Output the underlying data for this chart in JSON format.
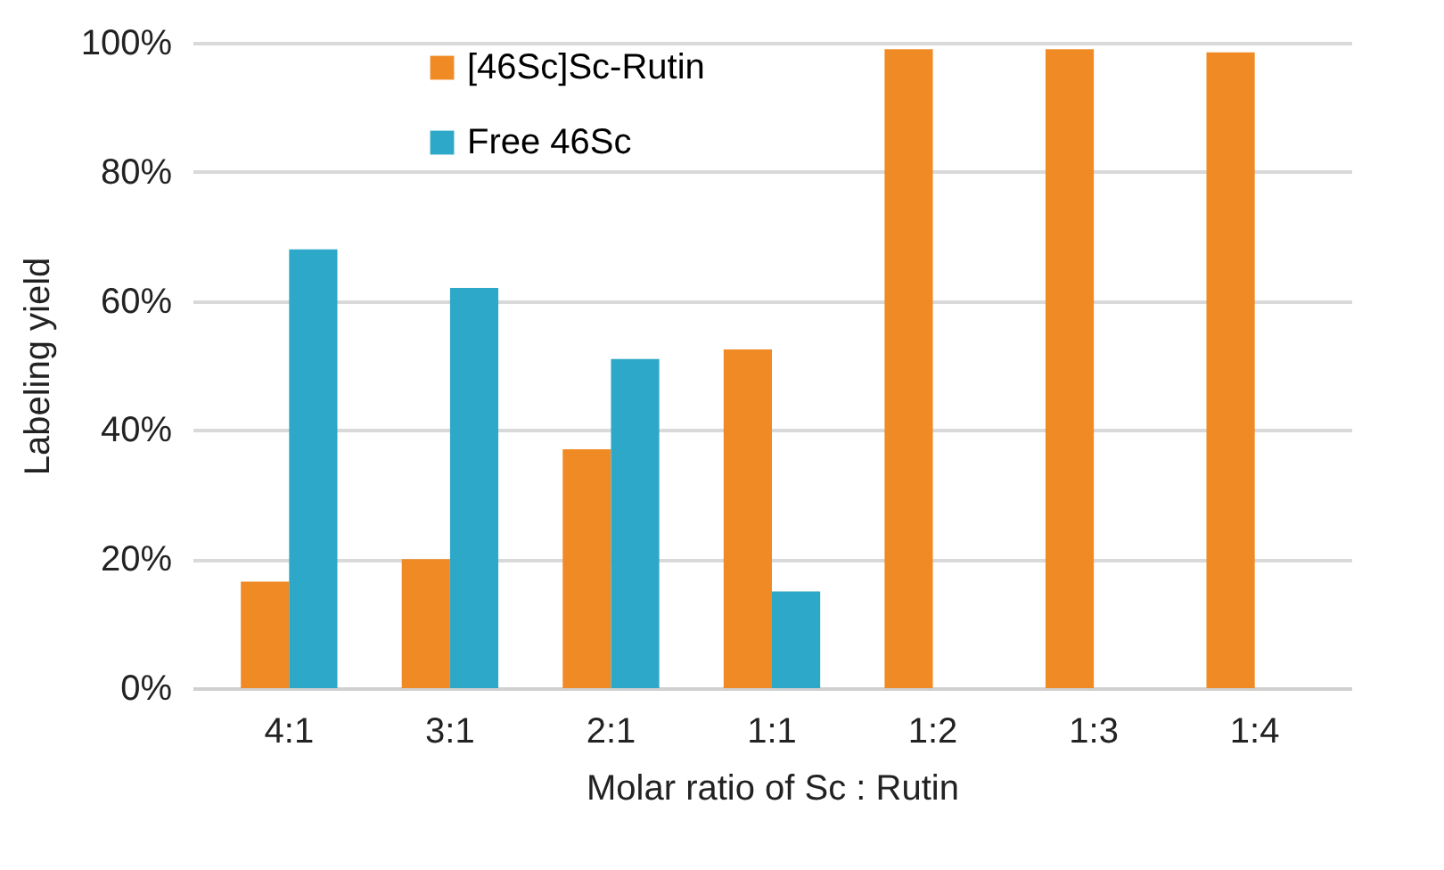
{
  "chart_data": {
    "type": "bar",
    "xlabel": "Molar ratio of Sc : Rutin",
    "ylabel": "Labeling yield",
    "categories": [
      "4:1",
      "3:1",
      "2:1",
      "1:1",
      "1:2",
      "1:3",
      "1:4"
    ],
    "series": [
      {
        "name": "[46Sc]Sc-Rutin",
        "color": "#f08a24",
        "values": [
          16.5,
          20,
          37,
          52.5,
          99,
          99,
          98.5
        ]
      },
      {
        "name": "Free 46Sc",
        "color": "#2ea8c8",
        "values": [
          68,
          62,
          51,
          15,
          0,
          0,
          0
        ]
      }
    ],
    "ylim": [
      0,
      100
    ],
    "yticks": [
      {
        "value": 0,
        "label": "0%"
      },
      {
        "value": 20,
        "label": "20%"
      },
      {
        "value": 40,
        "label": "40%"
      },
      {
        "value": 60,
        "label": "60%"
      },
      {
        "value": 80,
        "label": "80%"
      },
      {
        "value": 100,
        "label": "100%"
      }
    ],
    "grid": "y",
    "legend": "top"
  }
}
